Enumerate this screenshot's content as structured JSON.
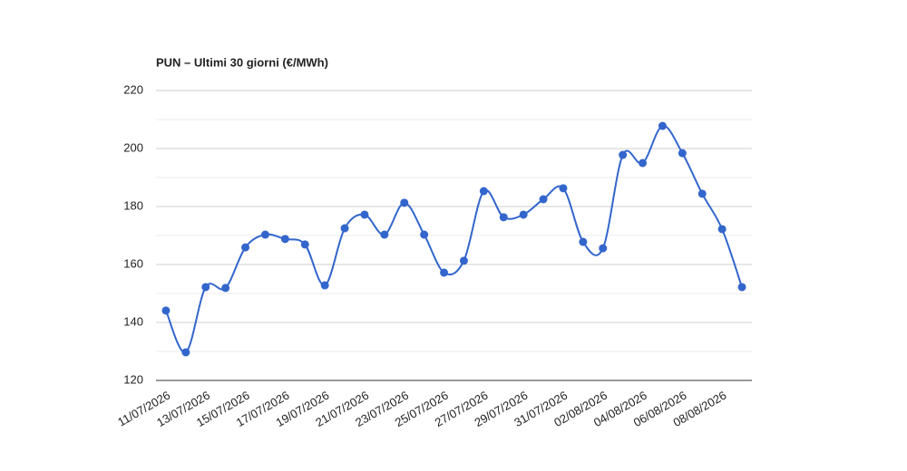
{
  "chart_data": {
    "type": "line",
    "title": "PUN – Ultimi 30 giorni (€/MWh)",
    "categories": [
      "11/07/2026",
      null,
      "13/07/2026",
      null,
      "15/07/2026",
      null,
      "17/07/2026",
      null,
      "19/07/2026",
      null,
      "21/07/2026",
      null,
      "23/07/2026",
      null,
      "25/07/2026",
      null,
      "27/07/2026",
      null,
      "29/07/2026",
      null,
      "31/07/2026",
      null,
      "02/08/2026",
      null,
      "04/08/2026",
      null,
      "06/08/2026",
      null,
      "08/08/2026",
      null
    ],
    "values": [
      144.1,
      129.7,
      152.2,
      151.9,
      165.9,
      170.3,
      168.8,
      166.9,
      152.8,
      172.5,
      177.2,
      170.3,
      181.3,
      170.3,
      157.2,
      161.3,
      185.3,
      176.3,
      177.2,
      182.5,
      186.3,
      167.8,
      165.6,
      197.8,
      195.0,
      207.8,
      198.4,
      184.4,
      172.2,
      152.2
    ],
    "color": "#3366cc",
    "ylim": [
      120,
      220
    ],
    "yticks": [
      120,
      140,
      160,
      180,
      200,
      220
    ],
    "grid": true
  }
}
